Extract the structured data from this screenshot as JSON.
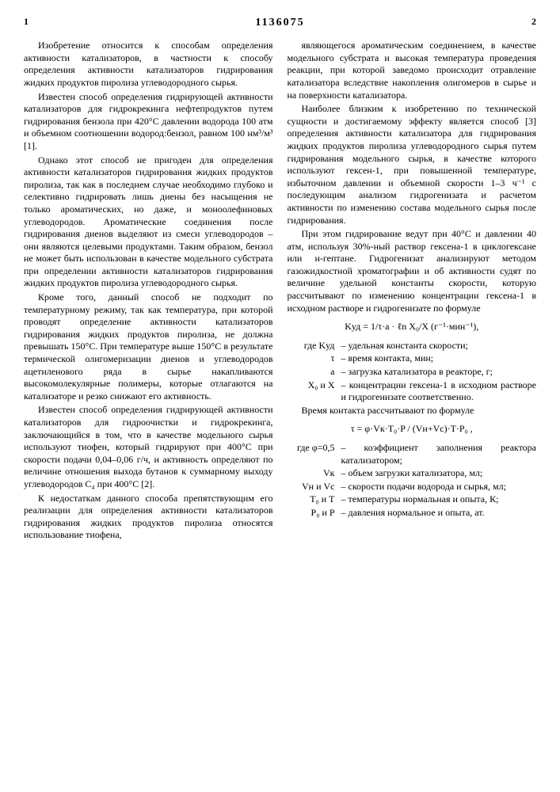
{
  "header": {
    "page_left": "1",
    "page_right": "2",
    "doc_number": "1136075"
  },
  "left_col": {
    "p1": "Изобретение относится к способам определения активности катализаторов, в частности к способу определения активности катализаторов гидрирования жидких продуктов пиролиза углеводородного сырья.",
    "p2": "Известен способ определения гидрирующей активности катализаторов для гидрокрекинга нефтепродуктов путем гидрирования бензола при 420°С давлении водорода 100 атм и объемном соотношении водород:бензол, равном 100 нм³/м³ [1].",
    "p3": "Однако этот способ не пригоден для определения активности катализаторов гидрирования жидких продуктов пиролиза, так как в последнем случае необходимо глубоко и селективно гидрировать лишь диены без насыщения не только ароматических, но даже, и моноолефиновых углеводородов. Ароматические соединения после гидрирования диенов выделяют из смеси углеводородов – они являются целевыми продуктами. Таким образом, бензол не может быть использован в качестве модельного субстрата при определении активности катализаторов гидрирования жидких продуктов пиролиза углеводородного сырья.",
    "p4": "Кроме того, данный способ не подходит по температурному режиму, так как температура, при которой проводят определение активности катализаторов гидрирования жидких продуктов пиролиза, не должна превышать 150°С. При температуре выше 150°С в результате термической олигомеризации диенов и углеводородов ацетиленового ряда в сырье накапливаются высокомолекулярные полимеры, которые отлагаются на катализаторе и резко снижают его активность.",
    "p5": "Известен способ определения гидрирующей активности катализаторов для гидроочистки и гидрокрекинга, заключающийся в том, что в качестве модельного сырья используют тиофен, который гидрируют при 400°С при скорости подачи 0,04–0,06 г/ч, и активность определяют по величине отношения выхода бутанов к суммарному выходу углеводородов С₄ при 400°С [2].",
    "p6": "К недостаткам данного способа препятствующим его реализации для определения активности катализаторов гидрирования жидких продуктов пиролиза относятся использование тиофена,"
  },
  "right_col": {
    "p1": "являющегося ароматическим соединением, в качестве модельного субстрата и высокая температура проведения реакции, при которой заведомо происходит отравление катализатора вследствие накопления олигомеров в сырье и на поверхности катализатора.",
    "p2": "Наиболее близким к изобретению по технической сущности и достигаемому эффекту является способ [3] определения активности катализатора для гидрирования жидких продуктов пиролиза углеводородного сырья путем гидрирования модельного сырья, в качестве которого используют гексен-1, при повышенной температуре, избыточном давлении и объемной скорости 1–3 ч⁻¹ с последующим анализом гидрогенизата и расчетом активности по изменению состава модельного сырья после гидрирования.",
    "p3": "При этом гидрирование ведут при 40°С и давлении 40 атм, используя 30%-ный раствор гексена-1 в циклогексане или н-гептане. Гидрогенизат анализируют методом газожидкостной хроматографии и об активности судят по величине удельной константы скорости, которую рассчитывают по изменению концентрации гексена-1 в исходном растворе и гидрогенизате по формуле",
    "formula1": "Kуд = 1/τ·a · ℓn X₀/X  (г⁻¹·мин⁻¹),",
    "defs1": [
      {
        "sym": "где Kуд",
        "txt": "– удельная константа скорости;"
      },
      {
        "sym": "τ",
        "txt": "– время контакта, мин;"
      },
      {
        "sym": "a",
        "txt": "– загрузка катализатора в реакторе, г;"
      },
      {
        "sym": "X₀ и X",
        "txt": "– концентрации гексена-1 в исходном растворе и гидрогенизате соответственно."
      }
    ],
    "p4": "Время контакта рассчитывают по формуле",
    "formula2": "τ = φ·Vк·T₀·P / (Vн+Vс)·T·P₀ ,",
    "defs2": [
      {
        "sym": "где φ=0,5",
        "txt": "– коэффициент заполнения реактора катализатором;"
      },
      {
        "sym": "Vк",
        "txt": "– объем загрузки катализатора, мл;"
      },
      {
        "sym": "Vн и Vс",
        "txt": "– скорости подачи водорода и сырья, мл;"
      },
      {
        "sym": "T₀ и T",
        "txt": "– температуры нормальная и опыта, К;"
      },
      {
        "sym": "P₀ и P",
        "txt": "– давления нормальное и опыта, ат."
      }
    ]
  }
}
